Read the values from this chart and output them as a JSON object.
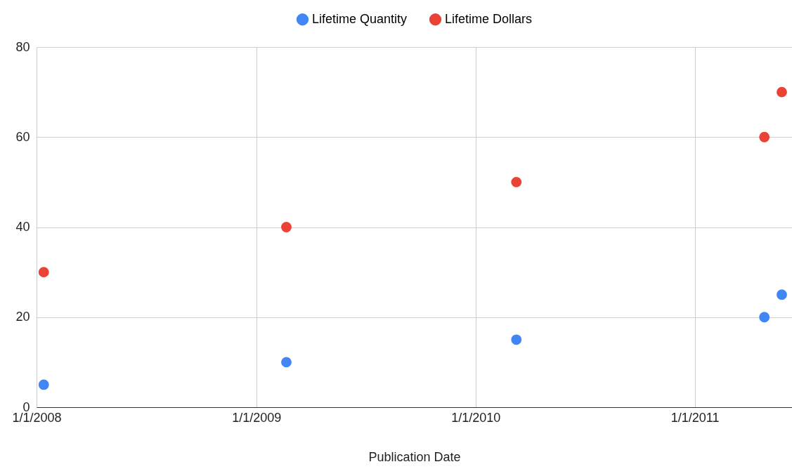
{
  "chart_data": {
    "type": "scatter",
    "xlabel": "Publication Date",
    "marker": "circle",
    "grid": true,
    "legend": "top",
    "x": [
      "2008-01-13",
      "2009-02-20",
      "2010-03-10",
      "2011-04-27",
      "2011-05-26"
    ],
    "series": [
      {
        "name": "Lifetime Quantity",
        "color": "#4285f4",
        "values": [
          5,
          10,
          15,
          20,
          25
        ]
      },
      {
        "name": "Lifetime Dollars",
        "color": "#ea4335",
        "values": [
          30,
          40,
          50,
          60,
          70
        ]
      }
    ],
    "xlim": [
      "2008-01-01",
      "2011-06-12"
    ],
    "xticks": [
      {
        "value": "2008-01-01",
        "label": "1/1/2008"
      },
      {
        "value": "2009-01-01",
        "label": "1/1/2009"
      },
      {
        "value": "2010-01-01",
        "label": "1/1/2010"
      },
      {
        "value": "2011-01-01",
        "label": "1/1/2011"
      }
    ],
    "ylim": [
      0,
      80
    ],
    "yticks": [
      0,
      20,
      40,
      60,
      80
    ]
  }
}
